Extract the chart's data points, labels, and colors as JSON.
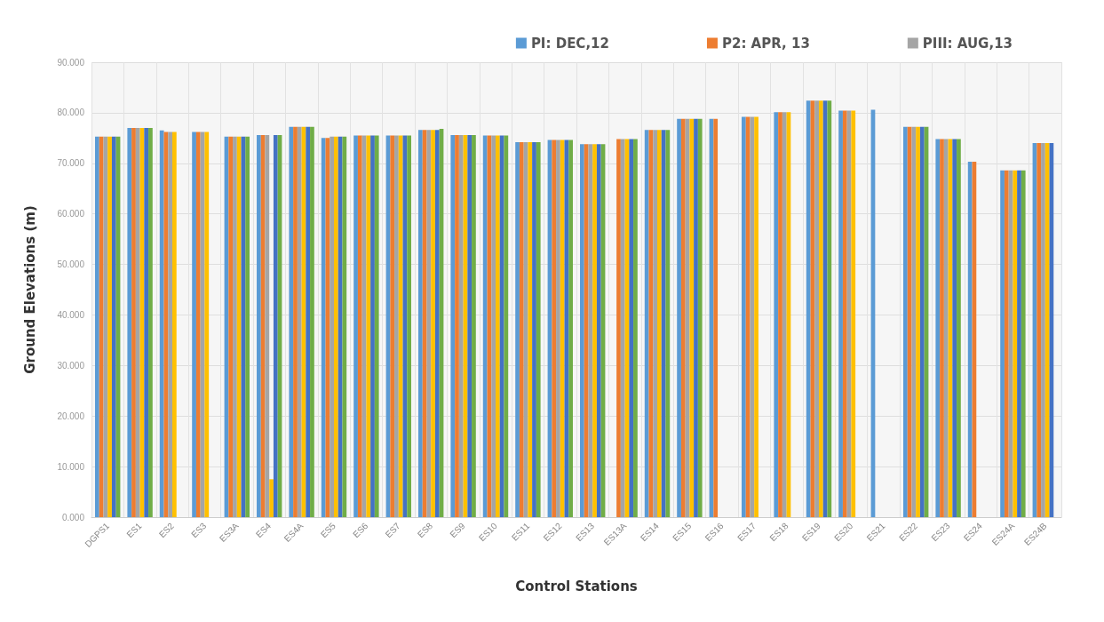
{
  "chart_data": {
    "type": "bar",
    "xlabel": "Control Stations",
    "ylabel": "Ground Elevations (m)",
    "categories": [
      "DGPS1",
      "ES1",
      "ES2",
      "ES3",
      "ES3A",
      "ES4",
      "ES4A",
      "ES5",
      "ES6",
      "ES7",
      "ES8",
      "ES9",
      "ES10",
      "ES11",
      "ES12",
      "ES13",
      "ES13A",
      "ES14",
      "ES15",
      "ES16",
      "ES17",
      "ES18",
      "ES19",
      "ES20",
      "ES21",
      "ES22",
      "ES23",
      "ES24",
      "ES24A",
      "ES24B"
    ],
    "series": [
      {
        "name": "PI: DEC,12",
        "color": "#5b9bd5",
        "values": [
          75.3,
          77.0,
          76.5,
          76.2,
          75.3,
          75.6,
          77.2,
          75.0,
          75.5,
          75.5,
          76.6,
          75.6,
          75.5,
          74.2,
          74.6,
          73.8,
          null,
          76.6,
          78.8,
          78.8,
          79.2,
          80.1,
          82.4,
          80.4,
          80.6,
          77.2,
          74.8,
          70.3,
          68.6,
          74.0
        ]
      },
      {
        "name": "P2: APR, 13",
        "color": "#ed7d31",
        "values": [
          75.3,
          77.0,
          76.2,
          76.2,
          75.3,
          75.6,
          77.2,
          75.0,
          75.5,
          75.5,
          76.6,
          75.6,
          75.5,
          74.2,
          74.6,
          73.8,
          74.8,
          76.6,
          78.8,
          78.8,
          79.2,
          80.1,
          82.4,
          80.4,
          null,
          77.2,
          74.8,
          70.3,
          68.6,
          74.0
        ]
      },
      {
        "name": "PIII: AUG,13",
        "color": "#a5a5a5",
        "values": [
          75.3,
          77.0,
          76.2,
          76.2,
          75.3,
          75.6,
          77.2,
          75.3,
          75.5,
          75.5,
          76.6,
          75.6,
          75.5,
          74.2,
          74.6,
          73.8,
          74.8,
          76.6,
          78.8,
          null,
          79.2,
          80.1,
          82.4,
          80.4,
          null,
          77.2,
          74.8,
          null,
          68.6,
          74.0
        ]
      },
      {
        "color": "#ffc000",
        "values": [
          75.3,
          77.0,
          76.2,
          76.2,
          75.3,
          7.5,
          77.2,
          75.3,
          75.5,
          75.5,
          76.6,
          75.6,
          75.5,
          74.2,
          74.6,
          73.8,
          74.8,
          76.6,
          78.8,
          null,
          79.2,
          80.1,
          82.4,
          80.4,
          null,
          77.2,
          74.8,
          null,
          68.6,
          74.0
        ]
      },
      {
        "color": "#4472c4",
        "values": [
          75.3,
          77.0,
          null,
          null,
          75.3,
          75.6,
          77.2,
          75.3,
          75.5,
          75.5,
          76.6,
          75.6,
          75.5,
          74.2,
          74.6,
          73.8,
          74.8,
          76.6,
          78.8,
          null,
          null,
          null,
          82.4,
          null,
          null,
          77.2,
          74.8,
          null,
          68.6,
          74.0
        ]
      },
      {
        "color": "#70ad47",
        "values": [
          75.3,
          77.0,
          null,
          null,
          75.3,
          75.6,
          77.2,
          75.3,
          75.5,
          75.5,
          76.8,
          75.6,
          75.5,
          74.2,
          74.6,
          73.8,
          74.8,
          76.6,
          78.8,
          null,
          null,
          null,
          82.4,
          null,
          null,
          77.2,
          74.8,
          null,
          68.6,
          null
        ]
      }
    ],
    "ylim": [
      0,
      90
    ],
    "yticks": [
      {
        "value": 0,
        "label": "0.000"
      },
      {
        "value": 10,
        "label": "10.000"
      },
      {
        "value": 20,
        "label": "20.000"
      },
      {
        "value": 30,
        "label": "30.000"
      },
      {
        "value": 40,
        "label": "40.000"
      },
      {
        "value": 50,
        "label": "50.000"
      },
      {
        "value": 60,
        "label": "60.000"
      },
      {
        "value": 70,
        "label": "70.000"
      },
      {
        "value": 80,
        "label": "80.000"
      },
      {
        "value": 90,
        "label": "90.000"
      }
    ],
    "grid": true,
    "legend": "top right"
  }
}
